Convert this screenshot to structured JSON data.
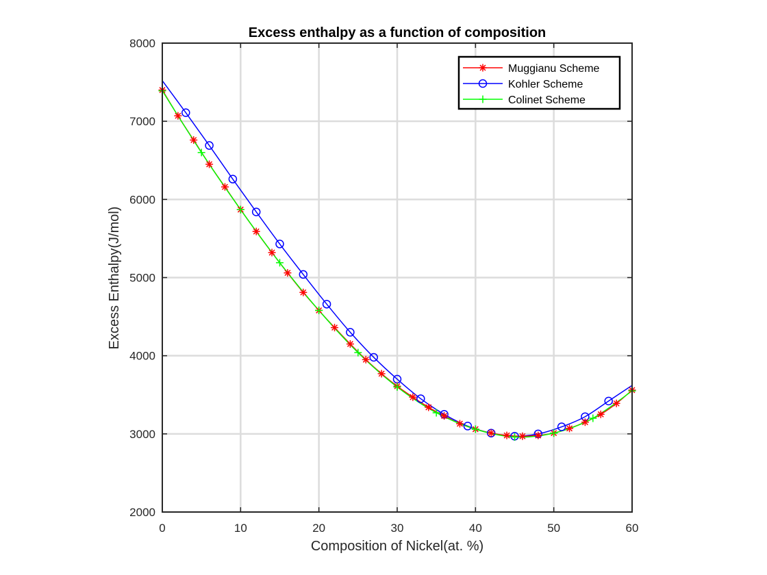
{
  "chart_data": {
    "type": "line",
    "title": "Excess enthalpy as a function of composition",
    "xlabel": "Composition of Nickel(at. %)",
    "ylabel": "Excess Enthalpy(J/mol)",
    "xlim": [
      0,
      60
    ],
    "ylim": [
      2000,
      8000
    ],
    "x_ticks": [
      0,
      10,
      20,
      30,
      40,
      50,
      60
    ],
    "y_ticks": [
      2000,
      3000,
      4000,
      5000,
      6000,
      7000,
      8000
    ],
    "grid": true,
    "legend_position": "top-right",
    "series": [
      {
        "name": "Muggianu Scheme",
        "color": "#ff0000",
        "marker": "asterisk",
        "x": [
          0,
          2,
          4,
          6,
          8,
          10,
          12,
          14,
          16,
          18,
          20,
          22,
          24,
          26,
          28,
          30,
          32,
          34,
          36,
          38,
          40,
          42,
          44,
          46,
          48,
          50,
          52,
          54,
          56,
          58,
          60
        ],
        "y": [
          7400,
          7070,
          6760,
          6450,
          6160,
          5870,
          5590,
          5320,
          5060,
          4810,
          4580,
          4360,
          4150,
          3950,
          3770,
          3610,
          3470,
          3340,
          3230,
          3130,
          3060,
          3010,
          2980,
          2970,
          2980,
          3010,
          3070,
          3150,
          3250,
          3390,
          3560
        ]
      },
      {
        "name": "Kohler Scheme",
        "color": "#0000ff",
        "marker": "circle",
        "x": [
          3,
          6,
          9,
          12,
          15,
          18,
          21,
          24,
          27,
          30,
          33,
          36,
          39,
          42,
          45,
          48,
          51,
          54,
          57
        ],
        "y": [
          7110,
          6690,
          6260,
          5840,
          5430,
          5040,
          4660,
          4300,
          3980,
          3700,
          3450,
          3250,
          3100,
          3010,
          2970,
          3000,
          3090,
          3220,
          3420
        ],
        "line_start": [
          0,
          7520
        ],
        "line_end": [
          60,
          3620
        ]
      },
      {
        "name": "Colinet Scheme",
        "color": "#00ff00",
        "marker": "plus",
        "x": [
          0,
          5,
          10,
          15,
          20,
          25,
          30,
          35,
          40,
          45,
          50,
          55,
          60
        ],
        "y": [
          7390,
          6600,
          5870,
          5190,
          4580,
          4040,
          3600,
          3270,
          3060,
          2960,
          3010,
          3200,
          3550
        ]
      }
    ]
  }
}
